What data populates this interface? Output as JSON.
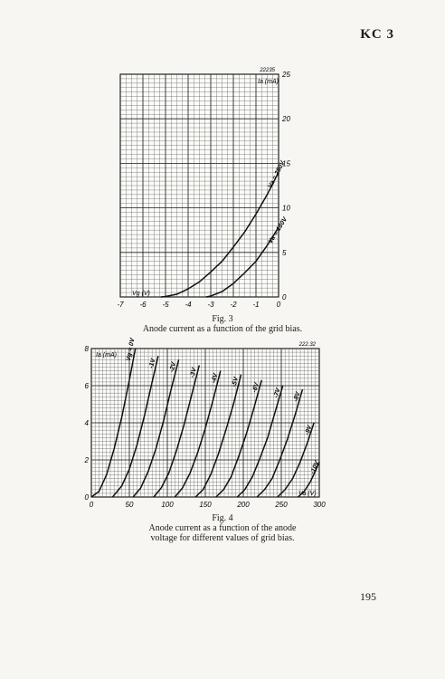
{
  "header": {
    "code": "KC 3"
  },
  "page_number": "195",
  "chart_data": [
    {
      "type": "line",
      "figure_label": "Fig. 3",
      "caption": "Anode current as a function of the grid bias.",
      "stamp": "22235",
      "xlabel": "Vg (V)",
      "ylabel": "Ia (mA)",
      "xlim": [
        -7,
        0
      ],
      "ylim": [
        0,
        25
      ],
      "x_ticks": [
        -7,
        -6,
        -5,
        -4,
        -3,
        -2,
        -1,
        0
      ],
      "x_tick_labels": [
        "-7",
        "-6",
        "-5",
        "-4",
        "-3",
        "-2",
        "-1",
        "0"
      ],
      "y_ticks": [
        0,
        5,
        10,
        15,
        20,
        25
      ],
      "y_tick_labels": [
        "0",
        "5",
        "10",
        "15",
        "20",
        "25"
      ],
      "grid": true,
      "series": [
        {
          "name": "Va = 250V",
          "x": [
            -5.2,
            -5,
            -4.5,
            -4,
            -3.5,
            -3,
            -2.5,
            -2,
            -1.5,
            -1,
            -0.5,
            0
          ],
          "y": [
            0,
            0.05,
            0.3,
            0.9,
            1.7,
            2.8,
            4.0,
            5.6,
            7.3,
            9.3,
            11.5,
            14.0
          ]
        },
        {
          "name": "Va = 180V",
          "x": [
            -3.2,
            -3,
            -2.5,
            -2,
            -1.5,
            -1,
            -0.5,
            0
          ],
          "y": [
            0,
            0.1,
            0.6,
            1.5,
            2.7,
            4.0,
            5.8,
            7.8
          ]
        }
      ]
    },
    {
      "type": "line",
      "figure_label": "Fig. 4",
      "caption": "Anode current as a function of the anode voltage for different values of grid bias.",
      "stamp": "222.32",
      "xlabel": "Va (V)",
      "ylabel": "Ia (mA)",
      "xlim": [
        0,
        300
      ],
      "ylim": [
        0,
        8
      ],
      "x_ticks": [
        0,
        50,
        100,
        150,
        200,
        250,
        300
      ],
      "x_tick_labels": [
        "0",
        "50",
        "100",
        "150",
        "200",
        "250",
        "300"
      ],
      "y_ticks": [
        0,
        2,
        4,
        6,
        8
      ],
      "y_tick_labels": [
        "0",
        "2",
        "4",
        "6",
        "8"
      ],
      "grid": true,
      "series": [
        {
          "name": "Vg = 0V",
          "x": [
            0,
            10,
            20,
            30,
            40,
            50,
            58
          ],
          "y": [
            0,
            0.3,
            1.2,
            2.6,
            4.3,
            6.3,
            8.0
          ]
        },
        {
          "name": "-1V",
          "x": [
            28,
            40,
            50,
            60,
            70,
            80,
            88
          ],
          "y": [
            0,
            0.6,
            1.5,
            2.8,
            4.4,
            6.2,
            7.6
          ]
        },
        {
          "name": "-2V",
          "x": [
            55,
            65,
            75,
            85,
            95,
            105,
            115
          ],
          "y": [
            0,
            0.5,
            1.4,
            2.6,
            4.1,
            5.8,
            7.4
          ]
        },
        {
          "name": "-3V",
          "x": [
            82,
            92,
            102,
            112,
            122,
            132,
            142
          ],
          "y": [
            0,
            0.5,
            1.3,
            2.5,
            3.9,
            5.5,
            7.1
          ]
        },
        {
          "name": "-4V",
          "x": [
            110,
            120,
            130,
            140,
            150,
            160,
            170
          ],
          "y": [
            0,
            0.5,
            1.3,
            2.4,
            3.7,
            5.2,
            6.8
          ]
        },
        {
          "name": "-5V",
          "x": [
            137,
            147,
            157,
            167,
            177,
            187,
            197
          ],
          "y": [
            0,
            0.4,
            1.2,
            2.3,
            3.6,
            5.0,
            6.6
          ]
        },
        {
          "name": "-6V",
          "x": [
            164,
            174,
            184,
            194,
            204,
            214,
            224
          ],
          "y": [
            0,
            0.4,
            1.1,
            2.2,
            3.4,
            4.8,
            6.3
          ]
        },
        {
          "name": "-7V",
          "x": [
            192,
            202,
            212,
            222,
            232,
            242,
            252
          ],
          "y": [
            0,
            0.4,
            1.1,
            2.1,
            3.2,
            4.6,
            6.0
          ]
        },
        {
          "name": "-8V",
          "x": [
            218,
            228,
            238,
            248,
            258,
            268,
            278
          ],
          "y": [
            0,
            0.4,
            1.0,
            2.0,
            3.1,
            4.4,
            5.8
          ]
        },
        {
          "name": "-9V",
          "x": [
            245,
            255,
            265,
            275,
            285,
            293
          ],
          "y": [
            0,
            0.4,
            1.0,
            1.9,
            3.0,
            4.0
          ]
        },
        {
          "name": "-10V",
          "x": [
            272,
            280,
            288,
            296,
            300
          ],
          "y": [
            0,
            0.3,
            0.8,
            1.5,
            1.9
          ]
        }
      ]
    }
  ]
}
